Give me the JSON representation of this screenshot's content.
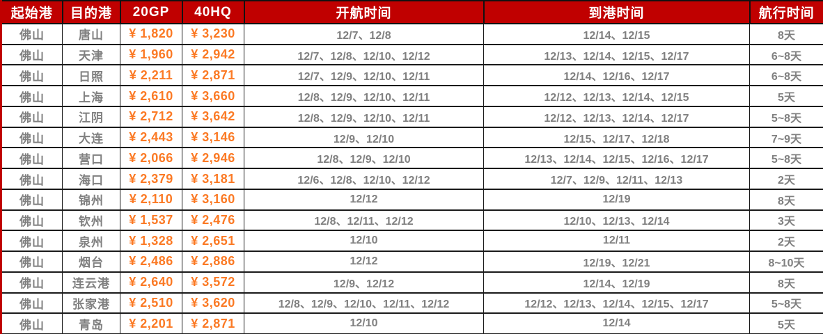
{
  "table": {
    "headers": [
      "起始港",
      "目的港",
      "20GP",
      "40HQ",
      "开航时间",
      "到港时间",
      "航行时间"
    ],
    "rows": [
      {
        "origin": "佛山",
        "dest": "唐山",
        "gp20": "¥ 1,820",
        "hq40": "¥ 3,230",
        "depart": "12/7、12/8",
        "arrive": "12/14、12/15",
        "duration": "8天"
      },
      {
        "origin": "佛山",
        "dest": "天津",
        "gp20": "¥ 1,960",
        "hq40": "¥ 2,942",
        "depart": "12/7、12/8、12/10、12/12",
        "arrive": "12/13、12/14、12/15、12/17",
        "duration": "6~8天"
      },
      {
        "origin": "佛山",
        "dest": "日照",
        "gp20": "¥ 2,211",
        "hq40": "¥ 2,871",
        "depart": "12/7、12/9、12/10、12/11",
        "arrive": "12/14、12/16、12/17",
        "duration": "6~8天"
      },
      {
        "origin": "佛山",
        "dest": "上海",
        "gp20": "¥ 2,610",
        "hq40": "¥ 3,660",
        "depart": "12/8、12/9、12/10、12/11",
        "arrive": "12/12、12/13、12/14、12/15",
        "duration": "5天"
      },
      {
        "origin": "佛山",
        "dest": "江阴",
        "gp20": "¥ 2,712",
        "hq40": "¥ 3,642",
        "depart": "12/8、12/9、12/10、12/11",
        "arrive": "12/12、12/13、12/14、12/17",
        "duration": "5~8天"
      },
      {
        "origin": "佛山",
        "dest": "大连",
        "gp20": "¥ 2,443",
        "hq40": "¥ 3,146",
        "depart": "12/9、12/10",
        "arrive": "12/15、12/17、12/18",
        "duration": "7~9天"
      },
      {
        "origin": "佛山",
        "dest": "营口",
        "gp20": "¥ 2,066",
        "hq40": "¥ 2,946",
        "depart": "12/8、12/9、12/10",
        "arrive": "12/13、12/14、12/15、12/16、12/17",
        "duration": "5~8天"
      },
      {
        "origin": "佛山",
        "dest": "海口",
        "gp20": "¥ 2,379",
        "hq40": "¥ 3,181",
        "depart": "12/6、12/8、12/10、12/12",
        "arrive": "12/7、12/9、12/11、12/13",
        "duration": "2天"
      },
      {
        "origin": "佛山",
        "dest": "锦州",
        "gp20": "¥ 2,110",
        "hq40": "¥ 3,160",
        "depart": "12/12",
        "arrive": "12/19",
        "duration": "8天"
      },
      {
        "origin": "佛山",
        "dest": "钦州",
        "gp20": "¥ 1,537",
        "hq40": "¥ 2,476",
        "depart": "12/8、12/11、12/12",
        "arrive": "12/10、12/13、12/14",
        "duration": "3天"
      },
      {
        "origin": "佛山",
        "dest": "泉州",
        "gp20": "¥ 1,328",
        "hq40": "¥ 2,651",
        "depart": "12/10",
        "arrive": "12/11",
        "duration": "2天"
      },
      {
        "origin": "佛山",
        "dest": "烟台",
        "gp20": "¥ 2,486",
        "hq40": "¥ 2,886",
        "depart": "12/12",
        "arrive": "12/19、12/21",
        "duration": "8~10天"
      },
      {
        "origin": "佛山",
        "dest": "连云港",
        "gp20": "¥ 2,640",
        "hq40": "¥ 3,572",
        "depart": "12/9、12/12",
        "arrive": "12/14、12/19",
        "duration": "8天"
      },
      {
        "origin": "佛山",
        "dest": "张家港",
        "gp20": "¥ 2,510",
        "hq40": "¥ 3,620",
        "depart": "12/8、12/9、12/10、12/11、12/12",
        "arrive": "12/12、12/13、12/14、12/15、12/17",
        "duration": "5~8天"
      },
      {
        "origin": "佛山",
        "dest": "青岛",
        "gp20": "¥ 2,201",
        "hq40": "¥ 2,871",
        "depart": "12/10",
        "arrive": "12/14",
        "duration": "5天"
      }
    ]
  },
  "colors": {
    "header_bg": "#c00000",
    "header_text": "#ffffff",
    "price_text": "#fb7a25",
    "body_text": "#808080",
    "grid_border": "#1a1a1a",
    "frame_border": "#c00000"
  }
}
